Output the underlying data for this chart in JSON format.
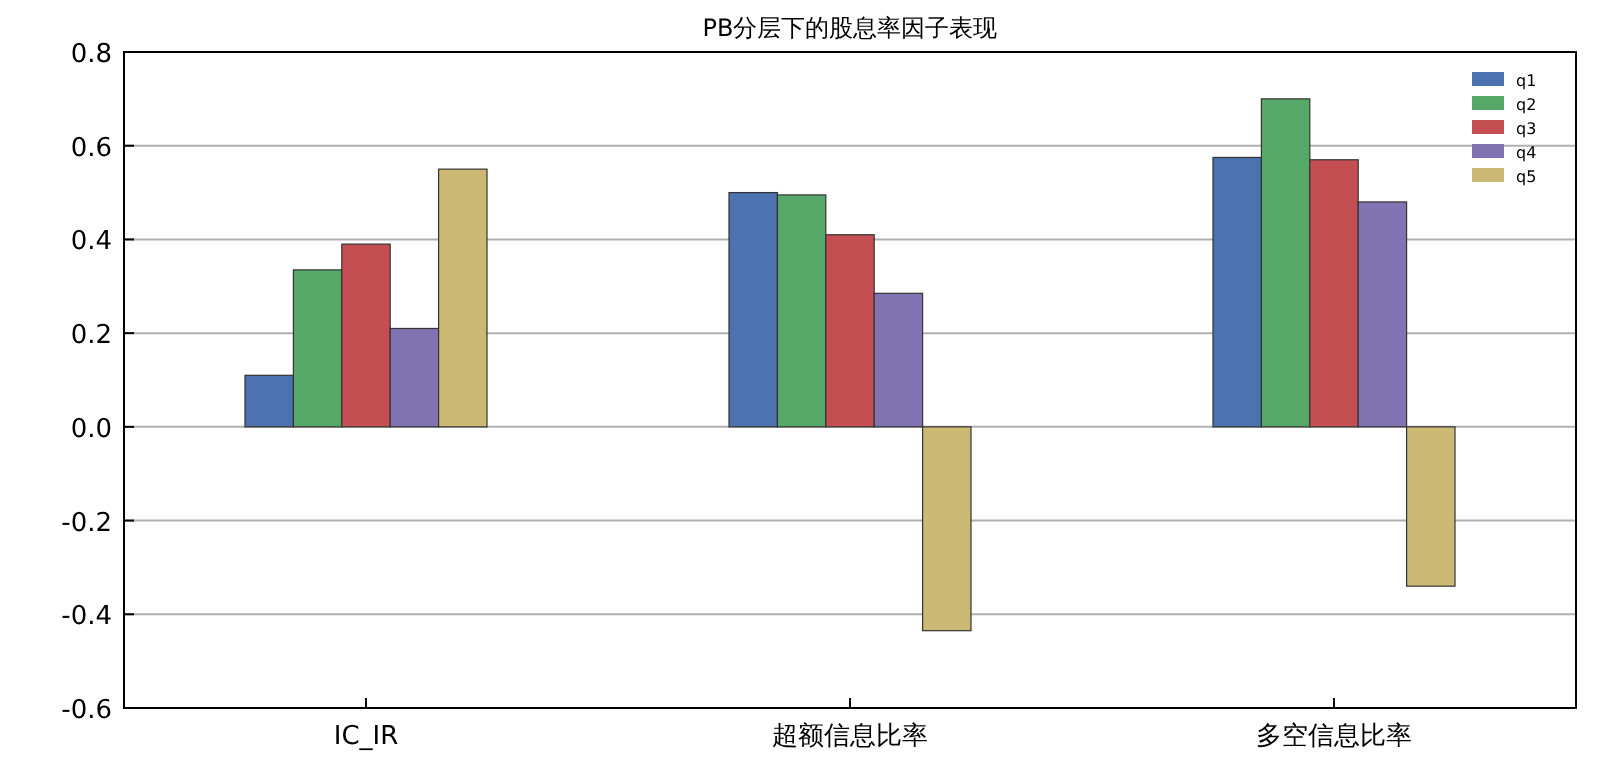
{
  "chart_data": {
    "type": "bar",
    "title": "PB分层下的股息率因子表现",
    "categories": [
      "IC_IR",
      "超额信息比率",
      "多空信息比率"
    ],
    "series": [
      {
        "name": "q1",
        "color": "#4c72b0",
        "values": [
          0.11,
          0.5,
          0.575
        ]
      },
      {
        "name": "q2",
        "color": "#55a868",
        "values": [
          0.335,
          0.495,
          0.7
        ]
      },
      {
        "name": "q3",
        "color": "#c44e52",
        "values": [
          0.39,
          0.41,
          0.57
        ]
      },
      {
        "name": "q4",
        "color": "#8172b2",
        "values": [
          0.21,
          0.285,
          0.48
        ]
      },
      {
        "name": "q5",
        "color": "#ccb974",
        "values": [
          0.55,
          -0.435,
          -0.34
        ]
      }
    ],
    "ylim": [
      -0.6,
      0.8
    ],
    "yticks": [
      -0.6,
      -0.4,
      -0.2,
      {
        "value": 0,
        "label": "0.0"
      },
      0.2,
      0.4,
      0.6,
      0.8
    ],
    "grid": "y",
    "legend": "top right"
  }
}
